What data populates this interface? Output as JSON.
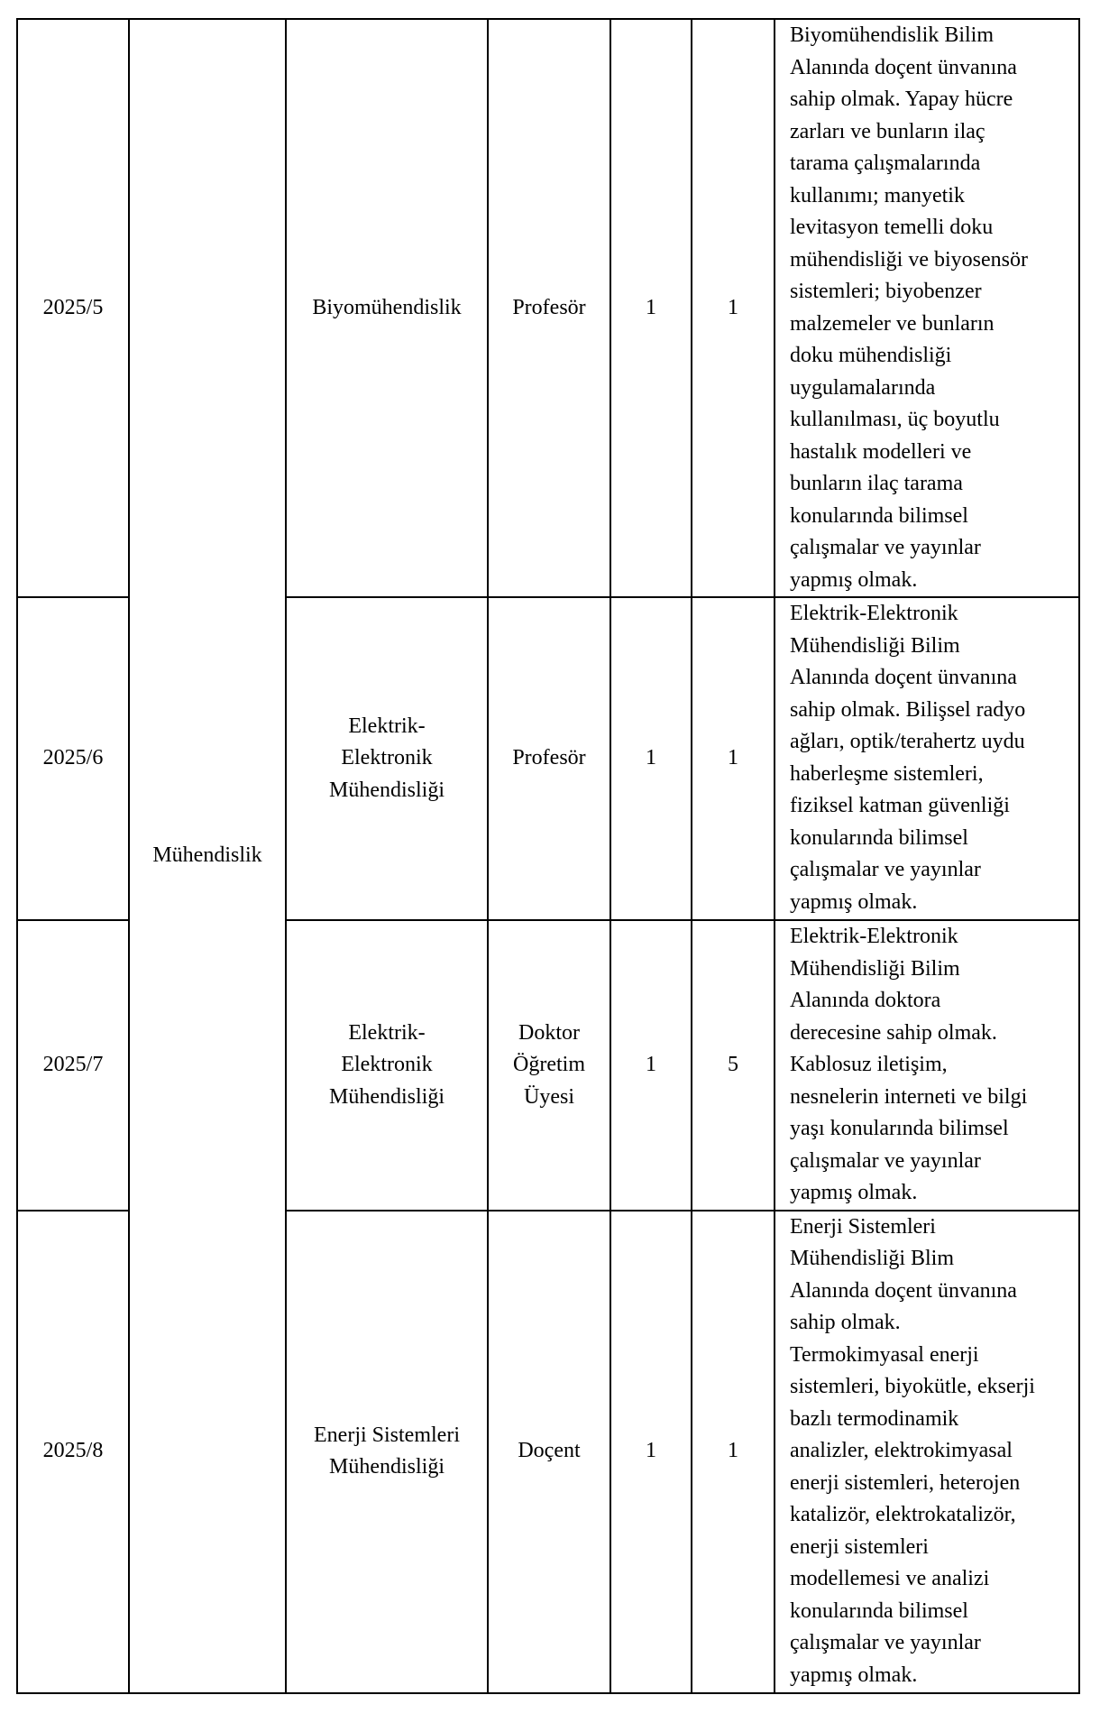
{
  "faculty": "Mühendislik",
  "rows": [
    {
      "code": "2025/5",
      "department": "Biyomühendislik",
      "title": "Profesör",
      "count1": "1",
      "count2": "1",
      "requirements": "Biyomühendislik Bilim\nAlanında doçent ünvanına\nsahip olmak. Yapay hücre\nzarları ve bunların ilaç\ntarama çalışmalarında\nkullanımı; manyetik\nlevitasyon temelli doku\nmühendisliği ve biyosensör\nsistemleri; biyobenzer\nmalzemeler ve bunların\ndoku mühendisliği\nuygulamalarında\nkullanılması, üç boyutlu\nhastalık modelleri ve\nbunların ilaç tarama\nkonularında bilimsel\nçalışmalar ve yayınlar\nyapmış olmak."
    },
    {
      "code": "2025/6",
      "department": "Elektrik-\nElektronik\nMühendisliği",
      "title": "Profesör",
      "count1": "1",
      "count2": "1",
      "requirements": "Elektrik-Elektronik\nMühendisliği Bilim\nAlanında doçent ünvanına\nsahip olmak. Bilişsel radyo\nağları, optik/terahertz uydu\nhaberleşme sistemleri,\nfiziksel katman güvenliği\nkonularında bilimsel\nçalışmalar ve yayınlar\nyapmış olmak."
    },
    {
      "code": "2025/7",
      "department": "Elektrik-\nElektronik\nMühendisliği",
      "title": "Doktor\nÖğretim\nÜyesi",
      "count1": "1",
      "count2": "5",
      "requirements": "Elektrik-Elektronik\nMühendisliği Bilim\nAlanında doktora\nderecesine sahip olmak.\nKablosuz iletişim,\nnesnelerin interneti ve bilgi\nyaşı konularında bilimsel\nçalışmalar ve yayınlar\nyapmış olmak."
    },
    {
      "code": "2025/8",
      "department": "Enerji Sistemleri\nMühendisliği",
      "title": "Doçent",
      "count1": "1",
      "count2": "1",
      "requirements": "Enerji Sistemleri\nMühendisliği Blim\nAlanında doçent ünvanına\nsahip olmak.\nTermokimyasal enerji\nsistemleri, biyokütle, ekserji\nbazlı termodinamik\nanalizler, elektrokimyasal\nenerji sistemleri, heterojen\nkatalizör, elektrokatalizör,\nenerji sistemleri\nmodellemesi ve analizi\nkonularında bilimsel\nçalışmalar ve yayınlar\nyapmış olmak."
    }
  ]
}
